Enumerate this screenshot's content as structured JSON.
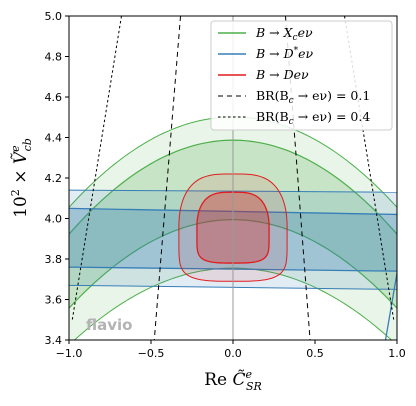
{
  "chart_data": {
    "type": "area",
    "x_range": [
      -1.0,
      1.0
    ],
    "y_range": [
      3.4,
      5.0
    ],
    "x_ticks": [
      -1.0,
      -0.5,
      0.0,
      0.5,
      1.0
    ],
    "x_tick_labels": [
      "−1.0",
      "−0.5",
      "0.0",
      "0.5",
      "1.0"
    ],
    "y_ticks": [
      3.4,
      3.6,
      3.8,
      4.0,
      4.2,
      4.4,
      4.6,
      4.8,
      5.0
    ],
    "y_tick_labels": [
      "3.4",
      "3.6",
      "3.8",
      "4.0",
      "4.2",
      "4.4",
      "4.6",
      "4.8",
      "5.0"
    ],
    "xlabel_main": "Re ",
    "xlabel_symbol": "C̃",
    "xlabel_sup": "e",
    "xlabel_sub": "SR",
    "ylabel_prefix": "10",
    "ylabel_exp": "2",
    "ylabel_mid": " × ",
    "ylabel_symbol": "Ṽ",
    "ylabel_sup": "e",
    "ylabel_sub": "cb",
    "watermark": "flavio",
    "legend_position": "top-right",
    "colors": {
      "green": "#4daf4a",
      "blue": "#377eb8",
      "red": "#e41a1c",
      "black": "#000000"
    },
    "series": [
      {
        "name": "B → Xc e ν",
        "legend_parts": [
          "B",
          " → ",
          "X",
          "c",
          "eν"
        ],
        "color": "#4daf4a",
        "kind": "band_parabola",
        "x": [
          -1.0,
          -0.75,
          -0.5,
          -0.25,
          0.0,
          0.25,
          0.5,
          0.75,
          1.0
        ],
        "inner_upper": [
          3.92,
          4.13,
          4.27,
          4.36,
          4.38,
          4.36,
          4.27,
          4.13,
          3.92
        ],
        "inner_lower": [
          3.55,
          3.76,
          3.89,
          3.96,
          3.99,
          3.96,
          3.89,
          3.76,
          3.55
        ],
        "outer_upper": [
          4.05,
          4.26,
          4.39,
          4.47,
          4.5,
          4.47,
          4.39,
          4.26,
          4.05
        ],
        "outer_lower": [
          3.37,
          3.55,
          3.66,
          3.73,
          3.75,
          3.73,
          3.66,
          3.55,
          3.37
        ]
      },
      {
        "name": "B → D* e ν",
        "legend_parts": [
          "B",
          " → ",
          "D",
          "*",
          "eν"
        ],
        "color": "#377eb8",
        "kind": "band_flat",
        "x": [
          -1.0,
          1.0
        ],
        "inner_upper": [
          4.05,
          4.02
        ],
        "inner_lower": [
          3.76,
          3.74
        ],
        "outer_upper": [
          4.14,
          4.13
        ],
        "outer_lower": [
          3.67,
          3.65
        ]
      },
      {
        "name": "B → D e ν",
        "legend_parts": [
          "B",
          " → ",
          "D",
          "",
          "eν"
        ],
        "color": "#e41a1c",
        "kind": "contour",
        "center": [
          0.0,
          3.9
        ],
        "inner": {
          "x_half_width": 0.22,
          "y_top": 4.13,
          "y_bottom": 3.78
        },
        "outer": {
          "x_half_width": 0.33,
          "y_top": 4.22,
          "y_bottom": 3.69
        }
      },
      {
        "name": "BR(Bc → e ν) = 0.1",
        "legend_parts": [
          "BR(B",
          "c",
          " → eν) = 0.1"
        ],
        "color": "#000000",
        "kind": "dashed_lines",
        "dash": "coarse",
        "left": {
          "x": [
            -0.32,
            -0.48
          ],
          "y": [
            5.0,
            3.4
          ]
        },
        "right": {
          "x": [
            0.32,
            0.47
          ],
          "y": [
            5.0,
            3.4
          ]
        }
      },
      {
        "name": "BR(Bc → e ν) = 0.4",
        "legend_parts": [
          "BR(B",
          "c",
          " → eν) = 0.4"
        ],
        "color": "#000000",
        "kind": "dashed_lines",
        "dash": "fine",
        "left": {
          "x": [
            -0.68,
            -0.98
          ],
          "y": [
            5.0,
            3.5
          ]
        },
        "right": {
          "x": [
            0.68,
            0.98
          ],
          "y": [
            5.0,
            3.5
          ]
        }
      }
    ],
    "extra_mark": {
      "color": "#377eb8",
      "x": [
        0.93,
        1.0
      ],
      "y": [
        3.4,
        3.73
      ]
    }
  }
}
